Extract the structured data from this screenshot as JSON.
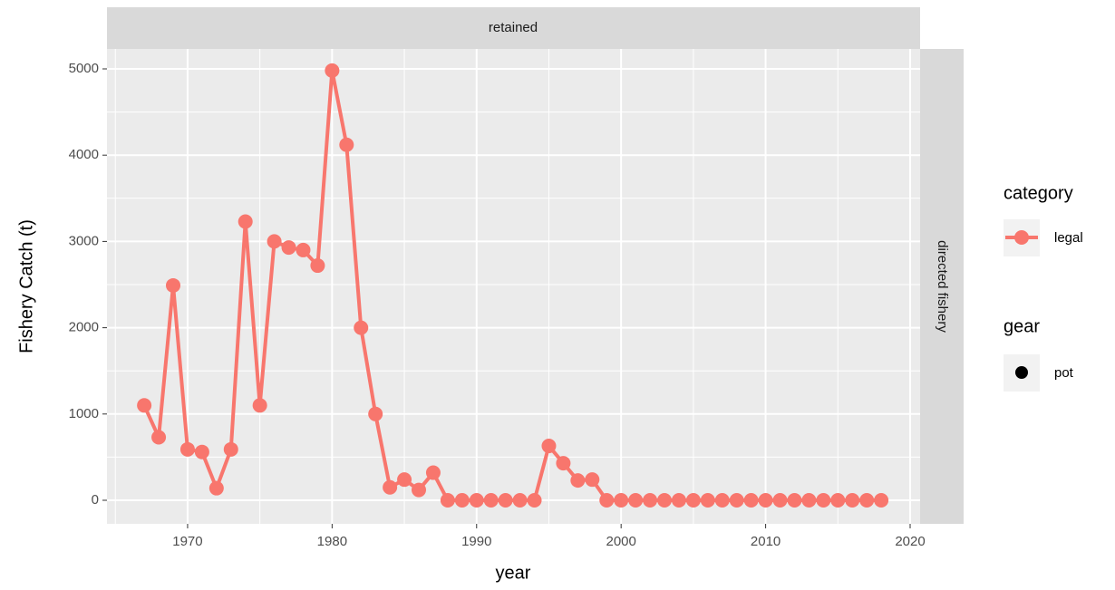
{
  "chart_data": {
    "type": "line",
    "x_label": "year",
    "y_label": "Fishery Catch (t)",
    "facet_col": "retained",
    "facet_row": "directed fishery",
    "legend_titles": {
      "color": "category",
      "shape": "gear"
    },
    "x": [
      1967,
      1968,
      1969,
      1970,
      1971,
      1972,
      1973,
      1974,
      1975,
      1976,
      1977,
      1978,
      1979,
      1980,
      1981,
      1982,
      1983,
      1984,
      1985,
      1986,
      1987,
      1988,
      1989,
      1990,
      1991,
      1992,
      1993,
      1994,
      1995,
      1996,
      1997,
      1998,
      1999,
      2000,
      2001,
      2002,
      2003,
      2004,
      2005,
      2006,
      2007,
      2008,
      2009,
      2010,
      2011,
      2012,
      2013,
      2014,
      2015,
      2016,
      2017,
      2018
    ],
    "series": [
      {
        "name": "legal",
        "shape": "pot",
        "color": "#f8766d",
        "values": [
          1100,
          730,
          2490,
          590,
          560,
          140,
          590,
          3230,
          1100,
          3000,
          2930,
          2900,
          2720,
          4980,
          4120,
          2000,
          1000,
          150,
          240,
          120,
          320,
          0,
          0,
          0,
          0,
          0,
          0,
          0,
          630,
          430,
          230,
          240,
          0,
          0,
          0,
          0,
          0,
          0,
          0,
          0,
          0,
          0,
          0,
          0,
          0,
          0,
          0,
          0,
          0,
          0,
          0,
          0
        ]
      }
    ],
    "xlim": [
      1964.42,
      2020.69
    ],
    "xticks": [
      1970,
      1980,
      1990,
      2000,
      2010,
      2020
    ],
    "ylim": [
      -273,
      5231
    ],
    "yticks": [
      0,
      1000,
      2000,
      3000,
      4000,
      5000
    ],
    "grid": true
  }
}
